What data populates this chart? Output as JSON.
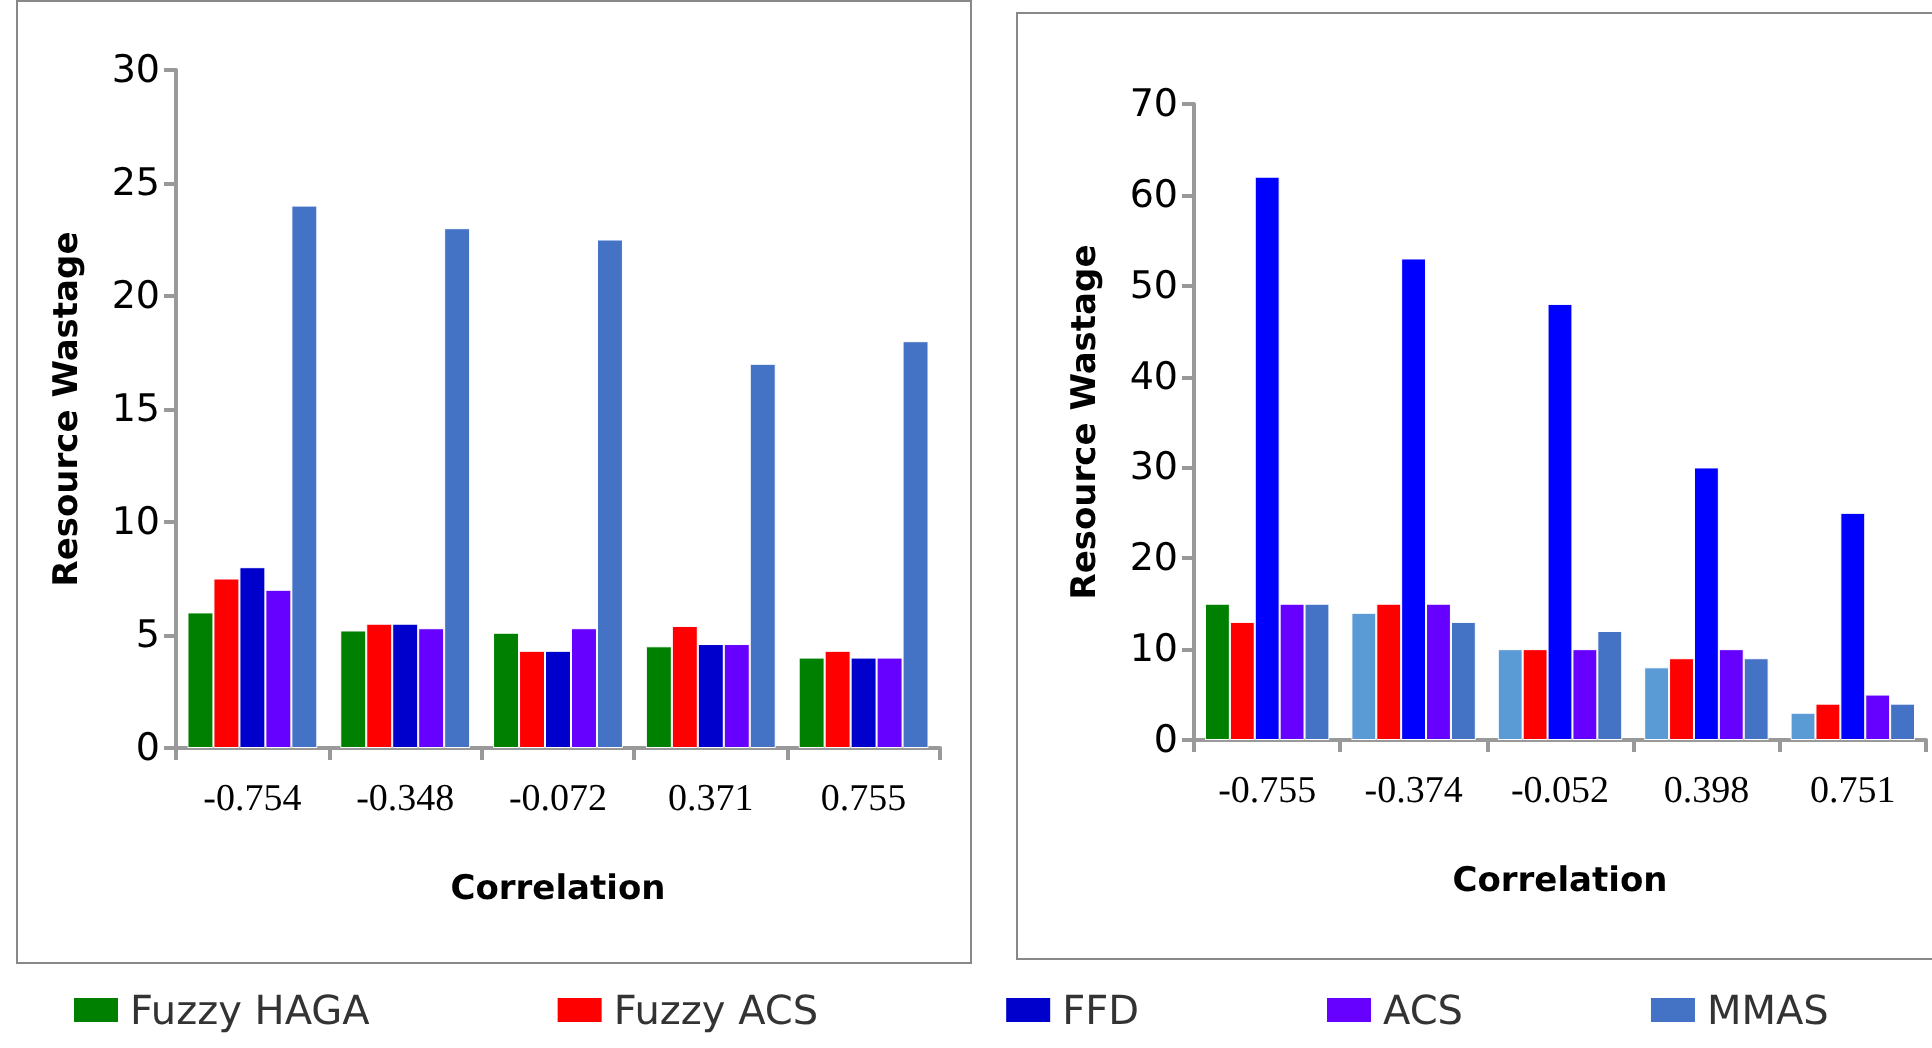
{
  "chart_data": [
    {
      "type": "bar",
      "xlabel": "Correlation",
      "ylabel": "Resource Wastage",
      "categories": [
        "-0.754",
        "-0.348",
        "-0.072",
        "0.371",
        "0.755"
      ],
      "series": [
        {
          "name": "Fuzzy HAGA",
          "color": "#008000",
          "values": [
            6,
            5.2,
            5.1,
            4.5,
            4
          ]
        },
        {
          "name": "Fuzzy ACS",
          "color": "#ff0000",
          "values": [
            7.5,
            5.5,
            4.3,
            5.4,
            4.3
          ]
        },
        {
          "name": "FFD",
          "color": "#0000cc",
          "values": [
            8,
            5.5,
            4.3,
            4.6,
            4
          ]
        },
        {
          "name": "ACS",
          "color": "#6600ff",
          "values": [
            7,
            5.3,
            5.3,
            4.6,
            4
          ]
        },
        {
          "name": "MMAS",
          "color": "#4472c4",
          "values": [
            24,
            23,
            22.5,
            17,
            18
          ]
        }
      ],
      "ylim": [
        0,
        30
      ],
      "yticks": [
        0,
        5,
        10,
        15,
        20,
        25,
        30
      ],
      "grid": false,
      "legend": "bottom"
    },
    {
      "type": "bar",
      "xlabel": "Correlation",
      "ylabel": "Resource Wastage",
      "categories": [
        "-0.755",
        "-0.374",
        "-0.052",
        "0.398",
        "0.751"
      ],
      "series": [
        {
          "colors": [
            "#008000",
            "#5b9bd5",
            "#5b9bd5",
            "#5b9bd5",
            "#5b9bd5"
          ],
          "values": [
            15,
            14,
            10,
            8,
            3
          ]
        },
        {
          "color": "#ff0000",
          "values": [
            13,
            15,
            10,
            9,
            4
          ]
        },
        {
          "color": "#0000ff",
          "values": [
            62,
            53,
            48,
            30,
            25
          ]
        },
        {
          "color": "#6600ff",
          "values": [
            15,
            15,
            10,
            10,
            5
          ]
        },
        {
          "color": "#4472c4",
          "values": [
            15,
            13,
            12,
            9,
            4
          ]
        }
      ],
      "ylim": [
        0,
        70
      ],
      "yticks": [
        0,
        10,
        20,
        30,
        40,
        50,
        60,
        70
      ],
      "grid": false
    }
  ]
}
